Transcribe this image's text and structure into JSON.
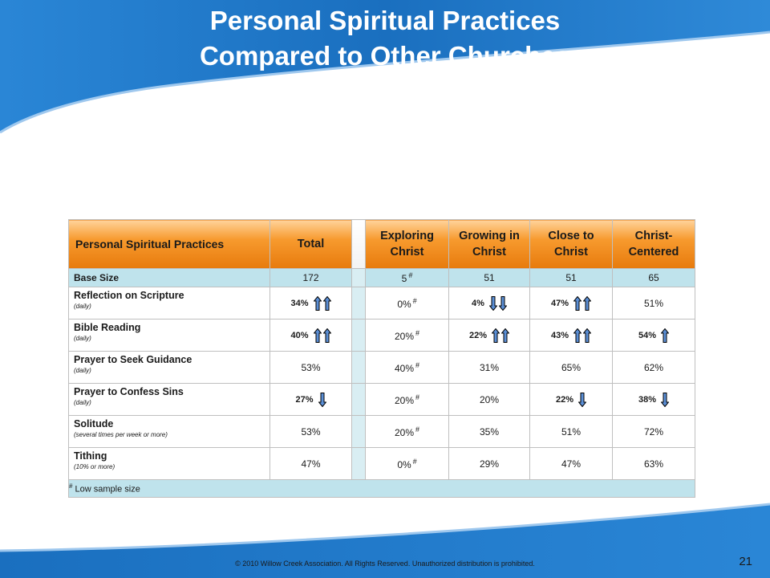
{
  "title_line1": "Personal Spiritual Practices",
  "title_line2": "Compared to Other Churches",
  "table": {
    "headers": [
      "Personal Spiritual Practices",
      "Total",
      "Exploring Christ",
      "Growing in Christ",
      "Close to Christ",
      "Christ-Centered"
    ],
    "base": {
      "label": "Base Size",
      "total": "172",
      "exploring": "5",
      "growing": "51",
      "close": "51",
      "centered": "65"
    },
    "rows": [
      {
        "name": "Reflection on Scripture",
        "sub": "(daily)",
        "total": "34%",
        "exploring": "0%",
        "growing": "4%",
        "close": "47%",
        "centered": "51%"
      },
      {
        "name": "Bible Reading",
        "sub": "(daily)",
        "total": "40%",
        "exploring": "20%",
        "growing": "22%",
        "close": "43%",
        "centered": "54%"
      },
      {
        "name": "Prayer to Seek Guidance",
        "sub": "(daily)",
        "total": "53%",
        "exploring": "40%",
        "growing": "31%",
        "close": "65%",
        "centered": "62%"
      },
      {
        "name": "Prayer to Confess Sins",
        "sub": "(daily)",
        "total": "27%",
        "exploring": "20%",
        "growing": "20%",
        "close": "22%",
        "centered": "38%"
      },
      {
        "name": "Solitude",
        "sub": "(several times per week or more)",
        "total": "53%",
        "exploring": "20%",
        "growing": "35%",
        "close": "51%",
        "centered": "72%"
      },
      {
        "name": "Tithing",
        "sub": "(10% or more)",
        "total": "47%",
        "exploring": "0%",
        "growing": "29%",
        "close": "47%",
        "centered": "63%"
      }
    ],
    "hash_mark": "#",
    "footnote": "Low sample size"
  },
  "colors": {
    "band_blue": "#1a6fbf",
    "header_orange": "#f28c1e",
    "base_blue": "#bfe3ec",
    "arrow_blue": "#5b8fd6"
  },
  "footer": "© 2010 Willow Creek Association.  All Rights Reserved.  Unauthorized distribution is prohibited.",
  "page_number": "21"
}
